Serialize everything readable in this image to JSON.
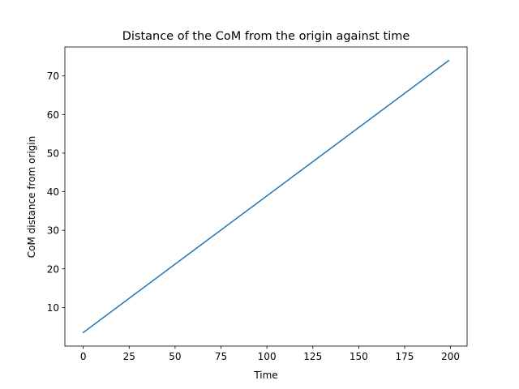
{
  "chart_data": {
    "type": "line",
    "title": "Distance of the CoM from the origin against time",
    "xlabel": "Time",
    "ylabel": "CoM distance from origin",
    "xlim": [
      -10,
      209
    ],
    "ylim": [
      0,
      77.5
    ],
    "xticks": [
      0,
      25,
      50,
      75,
      100,
      125,
      150,
      175,
      200
    ],
    "yticks": [
      10,
      20,
      30,
      40,
      50,
      60,
      70
    ],
    "grid": false,
    "series": [
      {
        "color": "#1f77b4",
        "x": [
          0,
          199
        ],
        "y": [
          3.5,
          74.0
        ]
      }
    ]
  }
}
